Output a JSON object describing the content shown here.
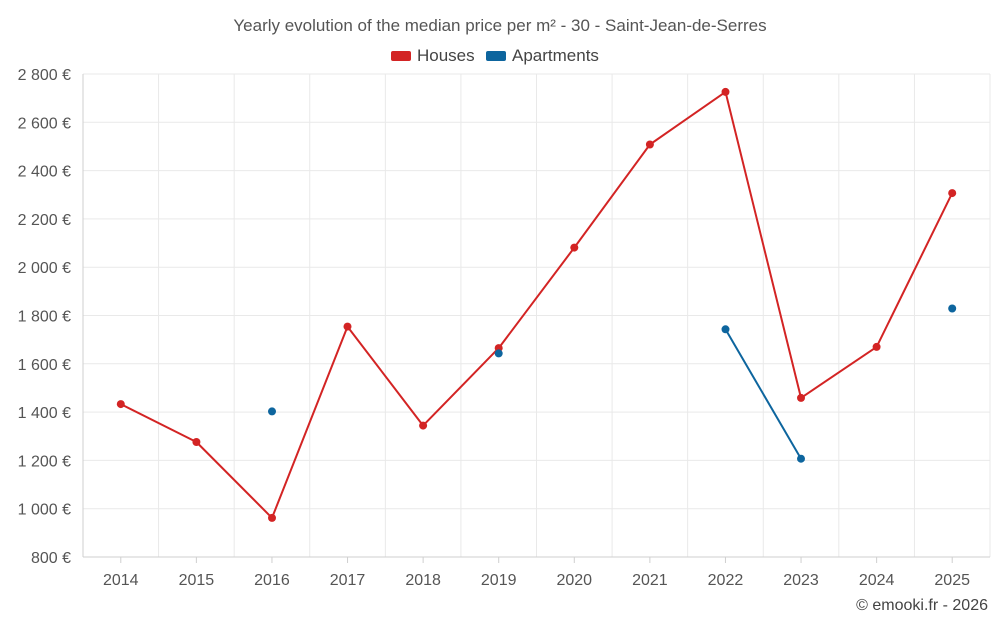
{
  "chart_data": {
    "type": "line",
    "title": "Yearly evolution of the median price per m² - 30 - Saint-Jean-de-Serres",
    "x": [
      "2014",
      "2015",
      "2016",
      "2017",
      "2018",
      "2019",
      "2020",
      "2021",
      "2022",
      "2023",
      "2024",
      "2025"
    ],
    "series": [
      {
        "name": "Houses",
        "color": "#d32424",
        "values": [
          1433,
          1276,
          962,
          1754,
          1344,
          1665,
          2081,
          2508,
          2726,
          1459,
          1670,
          2307
        ]
      },
      {
        "name": "Apartments",
        "color": "#0d659e",
        "values": [
          null,
          null,
          1403,
          null,
          null,
          1643,
          null,
          null,
          1743,
          1207,
          null,
          1829
        ]
      }
    ],
    "ylim": [
      800,
      2800
    ],
    "yticks": [
      800,
      1000,
      1200,
      1400,
      1600,
      1800,
      2000,
      2200,
      2400,
      2600,
      2800
    ],
    "ytick_labels": [
      "800 €",
      "1 000 €",
      "1 200 €",
      "1 400 €",
      "1 600 €",
      "1 800 €",
      "2 000 €",
      "2 200 €",
      "2 400 €",
      "2 600 €",
      "2 800 €"
    ],
    "grid": true,
    "legend": "top-center"
  },
  "credit": "© emooki.fr - 2026"
}
